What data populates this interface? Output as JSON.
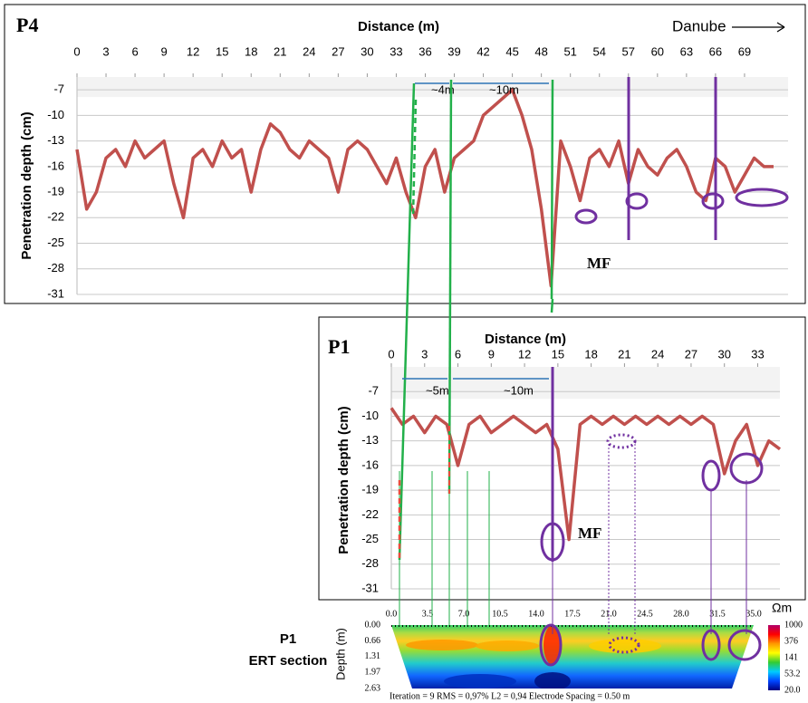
{
  "chart_data": [
    {
      "type": "line",
      "title": "P4",
      "x_label": "Distance (m)",
      "y_label": "Penetration depth (cm)",
      "color": "#c0504d",
      "xlim": [
        0,
        73.5
      ],
      "xticks": [
        0,
        3,
        6,
        9,
        12,
        15,
        18,
        21,
        24,
        27,
        30,
        33,
        36,
        39,
        42,
        45,
        48,
        51,
        54,
        57,
        60,
        63,
        66,
        69
      ],
      "ylim": [
        -31,
        -5.5
      ],
      "yticks": [
        -7,
        -10,
        -13,
        -16,
        -19,
        -22,
        -25,
        -28,
        -31
      ],
      "grid": true,
      "x": [
        0,
        1,
        2,
        3,
        4,
        5,
        6,
        7,
        8,
        9,
        10,
        11,
        12,
        13,
        14,
        15,
        16,
        17,
        18,
        19,
        20,
        21,
        22,
        23,
        24,
        25,
        26,
        27,
        28,
        29,
        30,
        31,
        32,
        33,
        34,
        35,
        36,
        37,
        38,
        39,
        40,
        41,
        42,
        43,
        44,
        45,
        46,
        47,
        48,
        49,
        50,
        51,
        52,
        53,
        54,
        55,
        56,
        57,
        58,
        59,
        60,
        61,
        62,
        63,
        64,
        65,
        66,
        67,
        68,
        69,
        70,
        71,
        72
      ],
      "values": [
        -14,
        -21,
        -19,
        -15,
        -14,
        -16,
        -13,
        -15,
        -14,
        -13,
        -18,
        -22,
        -15,
        -14,
        -16,
        -13,
        -15,
        -14,
        -19,
        -14,
        -11,
        -12,
        -14,
        -15,
        -13,
        -14,
        -15,
        -19,
        -14,
        -13,
        -14,
        -16,
        -18,
        -15,
        -19,
        -22,
        -16,
        -14,
        -19,
        -15,
        -14,
        -13,
        -10,
        -9,
        -8,
        -7,
        -10,
        -14,
        -21,
        -30,
        -13,
        -16,
        -20,
        -15,
        -14,
        -16,
        -13,
        -18,
        -14,
        -16,
        -17,
        -15,
        -14,
        -16,
        -19,
        -20,
        -15,
        -16,
        -19,
        -17,
        -15,
        -16,
        -16
      ],
      "annotations": [
        "~4m",
        "~10m",
        "MF",
        "Danube"
      ]
    },
    {
      "type": "line",
      "title": "P1",
      "x_label": "Distance (m)",
      "y_label": "Penetration depth (cm)",
      "color": "#c0504d",
      "xlim": [
        0,
        35
      ],
      "xticks": [
        0,
        3,
        6,
        9,
        12,
        15,
        18,
        21,
        24,
        27,
        30,
        33
      ],
      "ylim": [
        -31,
        -4
      ],
      "yticks": [
        -7,
        -10,
        -13,
        -16,
        -19,
        -22,
        -25,
        -28,
        -31
      ],
      "grid": true,
      "x": [
        0,
        1,
        2,
        3,
        4,
        5,
        6,
        7,
        8,
        9,
        10,
        11,
        12,
        13,
        14,
        15,
        16,
        17,
        18,
        19,
        20,
        21,
        22,
        23,
        24,
        25,
        26,
        27,
        28,
        29,
        30,
        31,
        32,
        33,
        34,
        35
      ],
      "values": [
        -9,
        -11,
        -10,
        -12,
        -10,
        -11,
        -16,
        -11,
        -10,
        -12,
        -11,
        -10,
        -11,
        -12,
        -11,
        -14,
        -25,
        -11,
        -10,
        -11,
        -10,
        -11,
        -10,
        -11,
        -10,
        -11,
        -10,
        -11,
        -10,
        -11,
        -17,
        -13,
        -11,
        -16,
        -13,
        -14
      ],
      "annotations": [
        "~5m",
        "~10m",
        "MF"
      ]
    },
    {
      "type": "section",
      "title": "P1",
      "subtitle": "ERT section",
      "y_label": "Depth (m)",
      "xlim": [
        0,
        35
      ],
      "xticks": [
        {
          "value": 0,
          "label": "0.0"
        },
        3.5,
        {
          "value": 7,
          "label": "7.0"
        },
        10.5,
        {
          "value": 14,
          "label": "14.0"
        },
        17.5,
        {
          "value": 21,
          "label": "21.0"
        },
        24.5,
        {
          "value": 28,
          "label": "28.0"
        },
        31.5,
        {
          "value": 35,
          "label": "35.0"
        }
      ],
      "ylim": [
        0,
        2.63
      ],
      "yticks": [
        {
          "value": 0,
          "label": "0.00"
        },
        0.66,
        1.31,
        1.97,
        2.63
      ],
      "colorbar": {
        "title": "Ωm",
        "scale": "log",
        "lim": [
          20,
          1000
        ],
        "ticks": [
          1000,
          376,
          141,
          53.2,
          {
            "value": 20,
            "label": "20.0"
          }
        ],
        "colors": [
          "#b0006a",
          "#ff0000",
          "#ff9900",
          "#ffff00",
          "#33cc33",
          "#00ccff",
          "#0044ff",
          "#000080"
        ]
      },
      "footer": "Iteration = 9    RMS = 0,97%    L2 = 0,94    Electrode Spacing = 0.50 m"
    }
  ]
}
